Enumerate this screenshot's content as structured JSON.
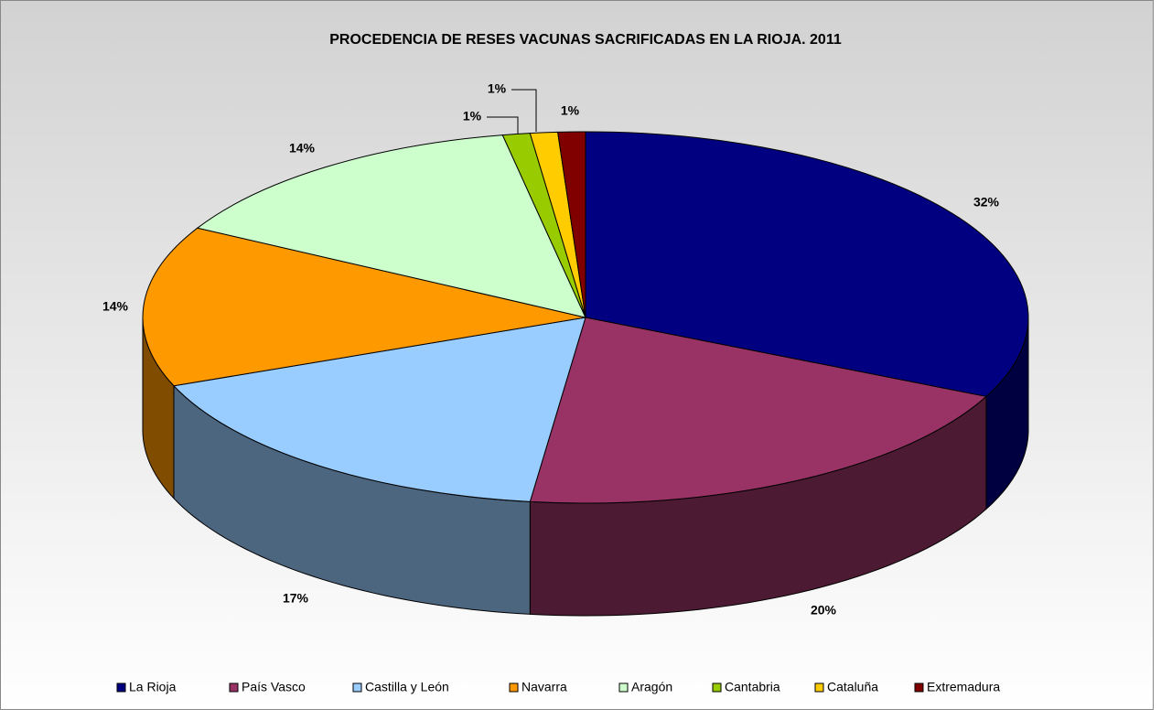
{
  "chart_data": {
    "type": "pie",
    "title": "PROCEDENCIA DE RESES VACUNAS SACRIFICADAS EN LA RIOJA. 2011",
    "categories": [
      "La Rioja",
      "País Vasco",
      "Castilla y León",
      "Navarra",
      "Aragón",
      "Cantabria",
      "Cataluña",
      "Extremadura"
    ],
    "values": [
      32,
      20,
      17,
      14,
      14,
      1,
      1,
      1
    ],
    "value_labels": [
      "32%",
      "20%",
      "17%",
      "14%",
      "14%",
      "1%",
      "1%",
      "1%"
    ],
    "colors": [
      "#000080",
      "#993366",
      "#99ccff",
      "#ff9900",
      "#ccffcc",
      "#99cc00",
      "#ffcc00",
      "#800000"
    ],
    "legend": "bottom"
  }
}
